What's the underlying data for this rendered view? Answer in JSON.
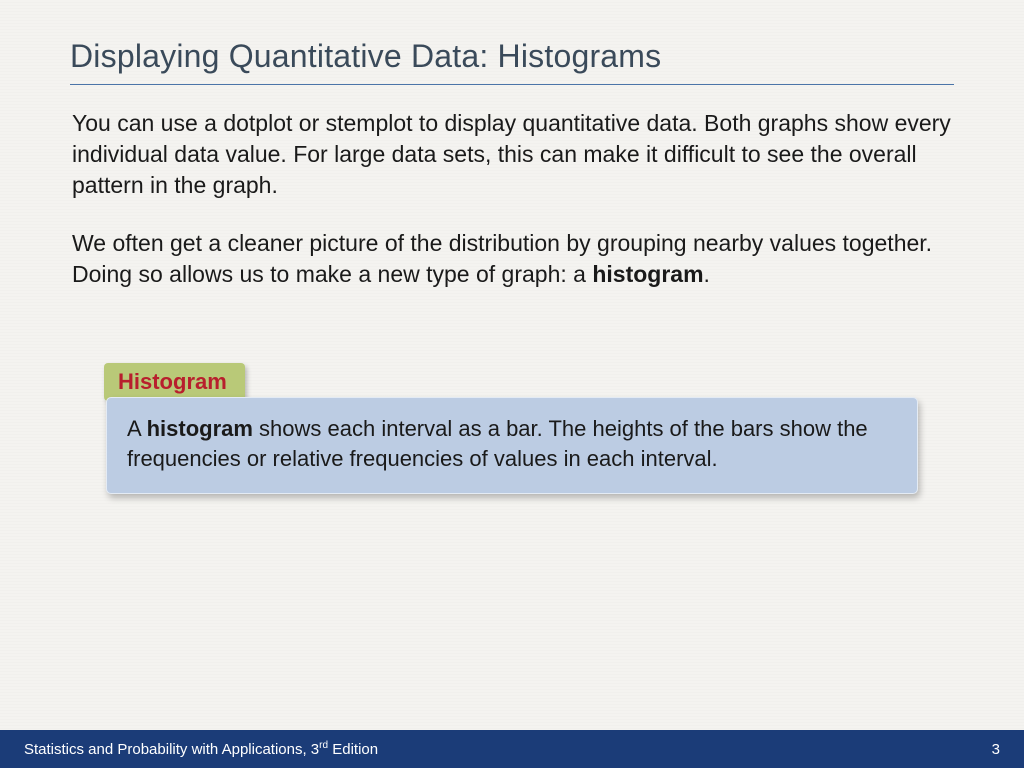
{
  "colors": {
    "background": "#f4f3f0",
    "title_text": "#3a4a5a",
    "underline": "#4a74a8",
    "body_text": "#1a1a1a",
    "tab_bg": "#b9c978",
    "tab_text": "#b81f2d",
    "def_bg": "#bcccE3",
    "def_text": "#1a1a1a",
    "footer_bg": "#1b3c78",
    "footer_text": "#ffffff"
  },
  "title": "Displaying Quantitative Data: Histograms",
  "paragraph1": "You can use a dotplot or stemplot to display quantitative data. Both graphs show every individual data value. For large data sets, this can make it difficult to see the overall pattern in the graph.",
  "paragraph2_a": "We often get a cleaner picture of the distribution by grouping nearby values together. Doing so allows us to make a new type of graph: a ",
  "paragraph2_bold": "histogram",
  "paragraph2_b": ".",
  "tab_label": "Histogram",
  "definition_a": "A ",
  "definition_bold": "histogram",
  "definition_b": " shows each interval as a bar. The heights of the bars show the frequencies or relative frequencies of values in each interval.",
  "footer_book_a": "Statistics and Probability with Applications, 3",
  "footer_book_sup": "rd",
  "footer_book_b": " Edition",
  "page_number": "3"
}
